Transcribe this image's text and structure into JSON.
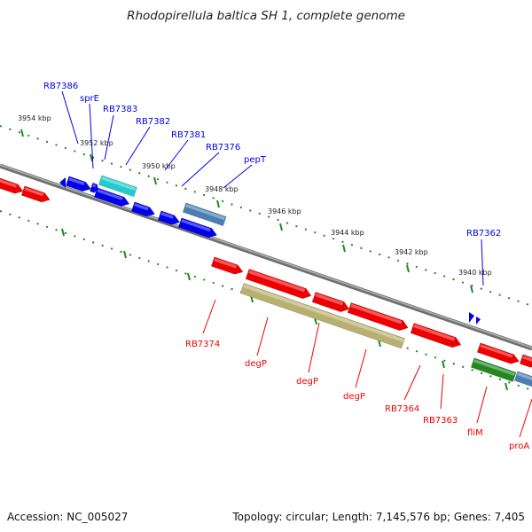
{
  "title": "Rhodopirellula baltica SH 1, complete genome",
  "footer": {
    "accession": "Accession: NC_005027",
    "summary": "Topology: circular; Length: 7,145,576 bp; Genes: 7,405"
  },
  "colors": {
    "forward_gene": "#0000ee",
    "reverse_gene": "#ee0000",
    "cyan_gene": "#22cccc",
    "steelblue_gene": "#4a7fb0",
    "olive_gene": "#b8b070",
    "green_gene": "#228822",
    "backbone": "#808080",
    "tick": "#228822"
  },
  "ticks": [
    "3954 kbp",
    "3952 kbp",
    "3950 kbp",
    "3948 kbp",
    "3946 kbp",
    "3944 kbp",
    "3942 kbp",
    "3940 kbp"
  ],
  "forward_labels": [
    "RB7386",
    "sprE",
    "RB7383",
    "RB7382",
    "RB7381",
    "RB7376",
    "pepT",
    "RB7362"
  ],
  "reverse_labels": [
    "RB7374",
    "degP",
    "degP",
    "degP",
    "RB7364",
    "RB7363",
    "fliM",
    "proA"
  ]
}
